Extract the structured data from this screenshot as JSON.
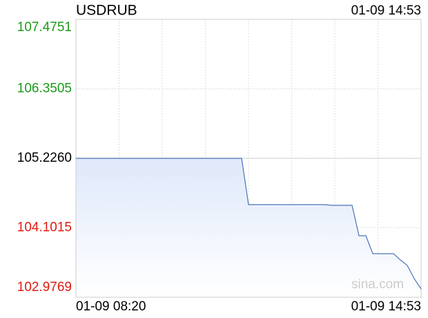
{
  "chart_data": {
    "type": "line",
    "title": "USDRUB",
    "time": "01-09 14:53",
    "watermark": "sina.com",
    "categories": [
      "01-09 08:20",
      null,
      null,
      null,
      null,
      null,
      null,
      null,
      null,
      null,
      null,
      null,
      null,
      null,
      null,
      null,
      null,
      null,
      null,
      null,
      null,
      null,
      null,
      null,
      null,
      null,
      null,
      null,
      null,
      null,
      null,
      null,
      null,
      null,
      null,
      null,
      null,
      null,
      null,
      null,
      null,
      null,
      null,
      null,
      null,
      null,
      null,
      null,
      null,
      null,
      "01-09 14:53"
    ],
    "series": [
      {
        "name": "USDRUB",
        "color": "#4a72b8",
        "values": [
          105.226,
          105.226,
          105.226,
          105.226,
          105.226,
          105.226,
          105.226,
          105.226,
          105.226,
          105.226,
          105.226,
          105.226,
          105.226,
          105.226,
          105.226,
          105.226,
          105.226,
          105.226,
          105.226,
          105.226,
          105.226,
          105.226,
          105.226,
          105.226,
          105.226,
          104.476,
          104.476,
          104.476,
          104.476,
          104.476,
          104.476,
          104.476,
          104.476,
          104.476,
          104.476,
          104.476,
          104.476,
          104.465,
          104.465,
          104.465,
          104.465,
          103.973,
          103.973,
          103.682,
          103.682,
          103.682,
          103.682,
          103.581,
          103.492,
          103.279,
          103.111
        ]
      }
    ],
    "ylim": [
      102.9769,
      107.4751
    ],
    "yticks": [
      102.9769,
      104.1015,
      105.226,
      {
        "value": 105.226,
        "label": "105.2260"
      },
      106.3505,
      107.4751
    ],
    "up_color": "#1a9a1a",
    "down_color": "#e0190f",
    "grid": true
  }
}
